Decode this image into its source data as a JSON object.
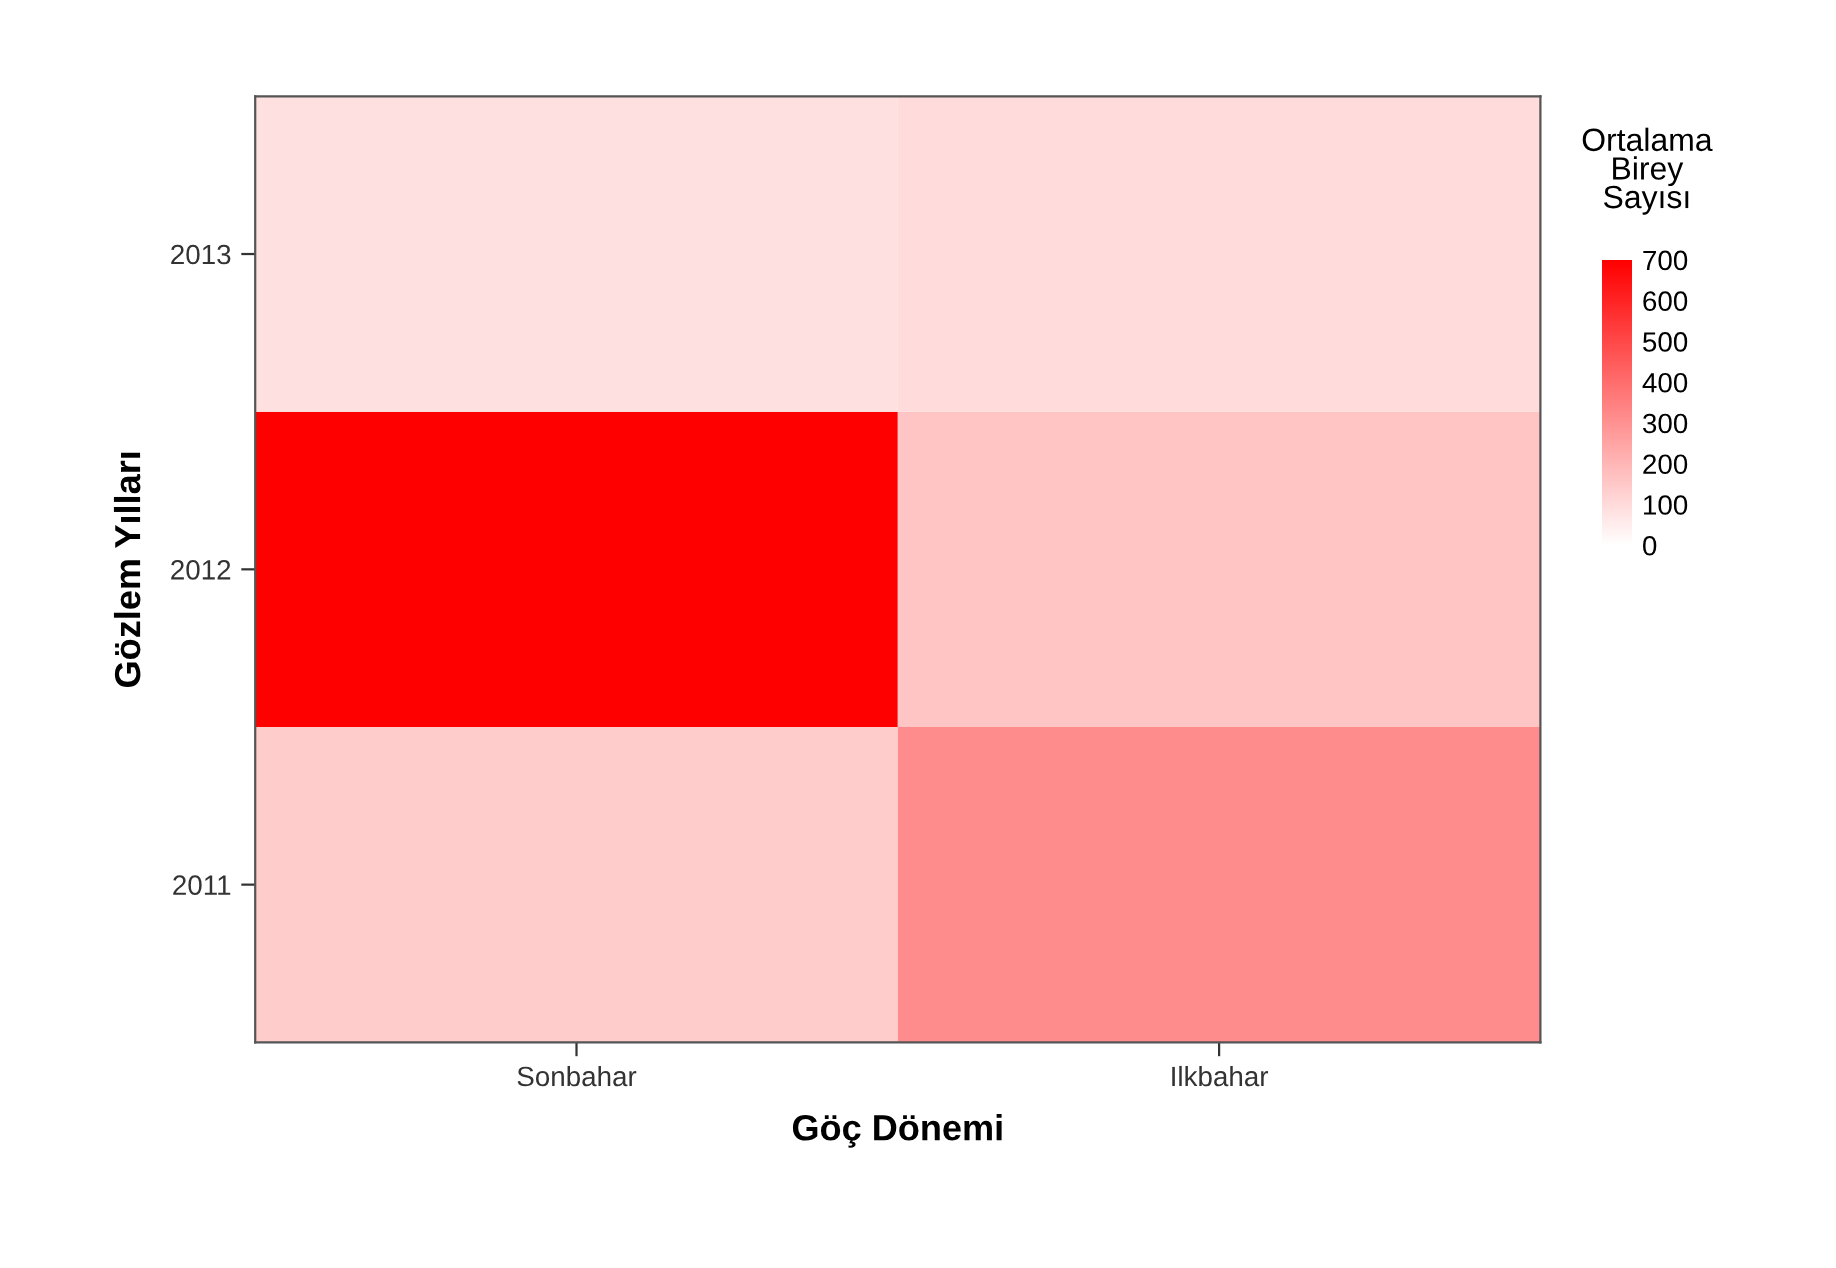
{
  "chart_data": {
    "type": "heatmap",
    "xlabel": "Göç Dönemi",
    "ylabel": "Gözlem Yılları",
    "clabel": "Ortalama\nBirey\nSayısı",
    "categories": [
      "Sonbahar",
      "Ilkbahar"
    ],
    "y_categories": [
      "2013",
      "2012",
      "2011"
    ],
    "cells": [
      [
        85,
        100
      ],
      [
        700,
        160
      ],
      [
        140,
        315
      ]
    ],
    "clim": [
      0,
      700
    ],
    "cticks": [
      0,
      100,
      200,
      300,
      400,
      500,
      600,
      700
    ],
    "color": "#ff0000"
  }
}
